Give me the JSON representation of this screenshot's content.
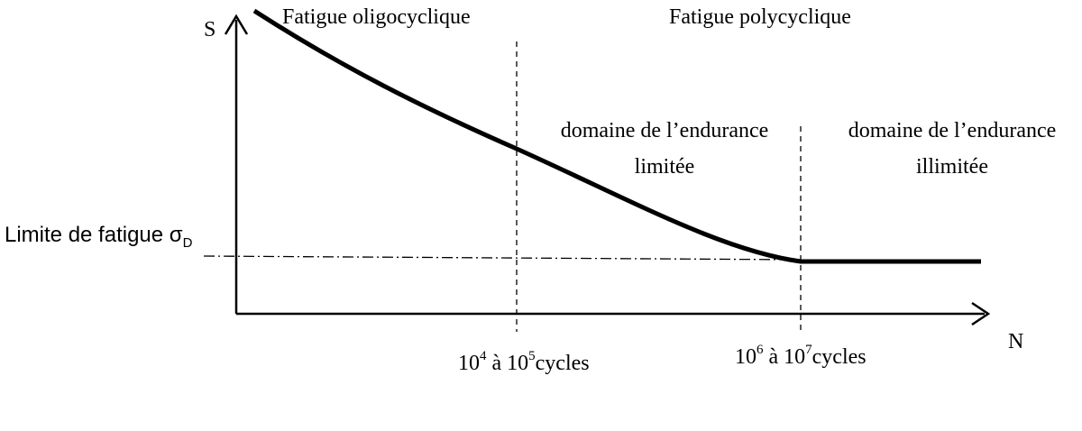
{
  "axes": {
    "y_label": "S",
    "x_label": "N"
  },
  "regions": {
    "low_cycle": "Fatigue oligocyclique",
    "high_cycle": "Fatigue polycyclique",
    "limited_line1": "domaine de l’endurance",
    "limited_line2": "limitée",
    "unlimited_line1": "domaine de l’endurance",
    "unlimited_line2": "illimitée"
  },
  "fatigue_limit": {
    "text": "Limite de fatigue σ",
    "subscript": "D"
  },
  "ticks": {
    "first": {
      "base1": "10",
      "exp1": "4",
      "mid": " à 10",
      "exp2": "5",
      "unit": "cycles"
    },
    "second": {
      "base1": "10",
      "exp1": "6",
      "mid": " à 10",
      "exp2": "7",
      "unit": "cycles"
    }
  },
  "colors": {
    "ink": "#000000",
    "background": "#ffffff"
  }
}
